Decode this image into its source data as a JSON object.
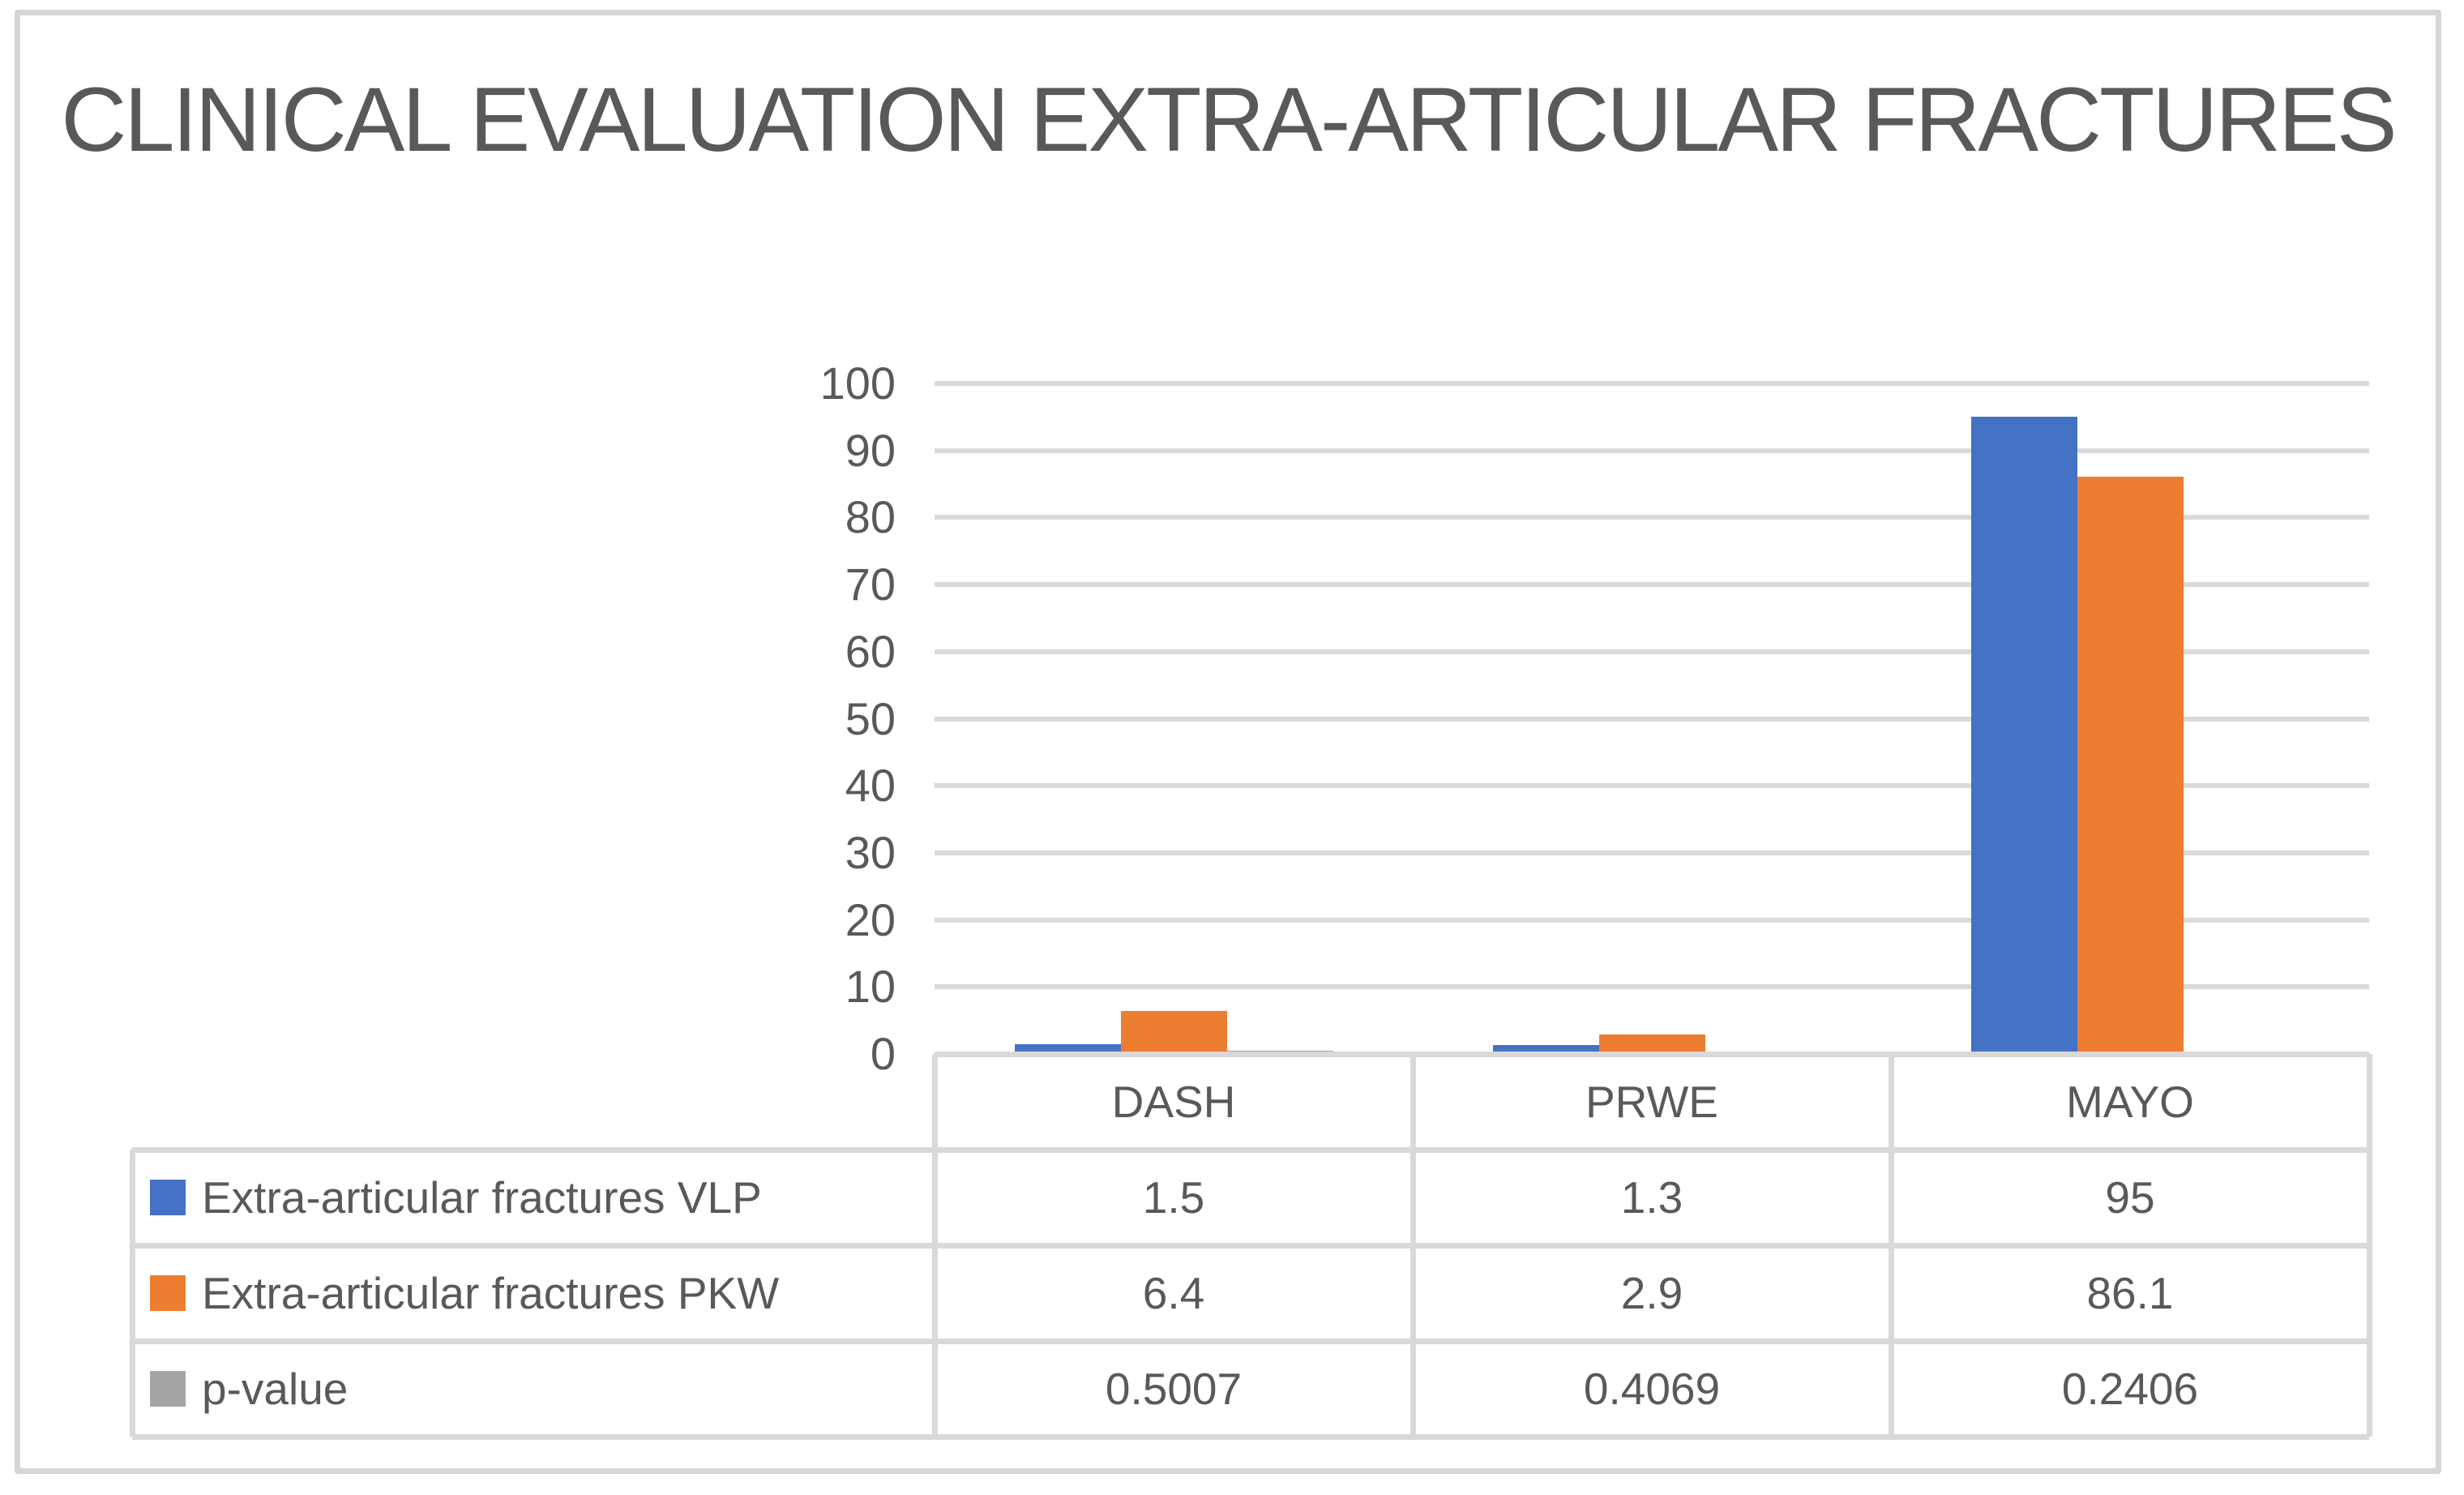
{
  "chart_data": {
    "type": "bar",
    "title": "CLINICAL EVALUATION EXTRA-ARTICULAR FRACTURES",
    "categories": [
      "DASH",
      "PRWE",
      "MAYO"
    ],
    "series": [
      {
        "key": "vlp",
        "name": "Extra-articular fractures VLP",
        "color": "#4472C4",
        "values": [
          1.5,
          1.3,
          95
        ]
      },
      {
        "key": "pkw",
        "name": "Extra-articular fractures PKW",
        "color": "#ED7D31",
        "values": [
          6.4,
          2.9,
          86.1
        ]
      },
      {
        "key": "p-value",
        "name": "p-value",
        "color": "#A5A5A5",
        "values": [
          0.5007,
          0.4069,
          0.2406
        ]
      }
    ],
    "ylim": [
      0,
      100
    ],
    "ytick_step": 10,
    "grid": true,
    "legend_position": "table-left",
    "colors": {
      "text": "#595959",
      "grid": "#D9D9D9",
      "frame": "#D6D6D6",
      "background": "#FFFFFF"
    }
  }
}
